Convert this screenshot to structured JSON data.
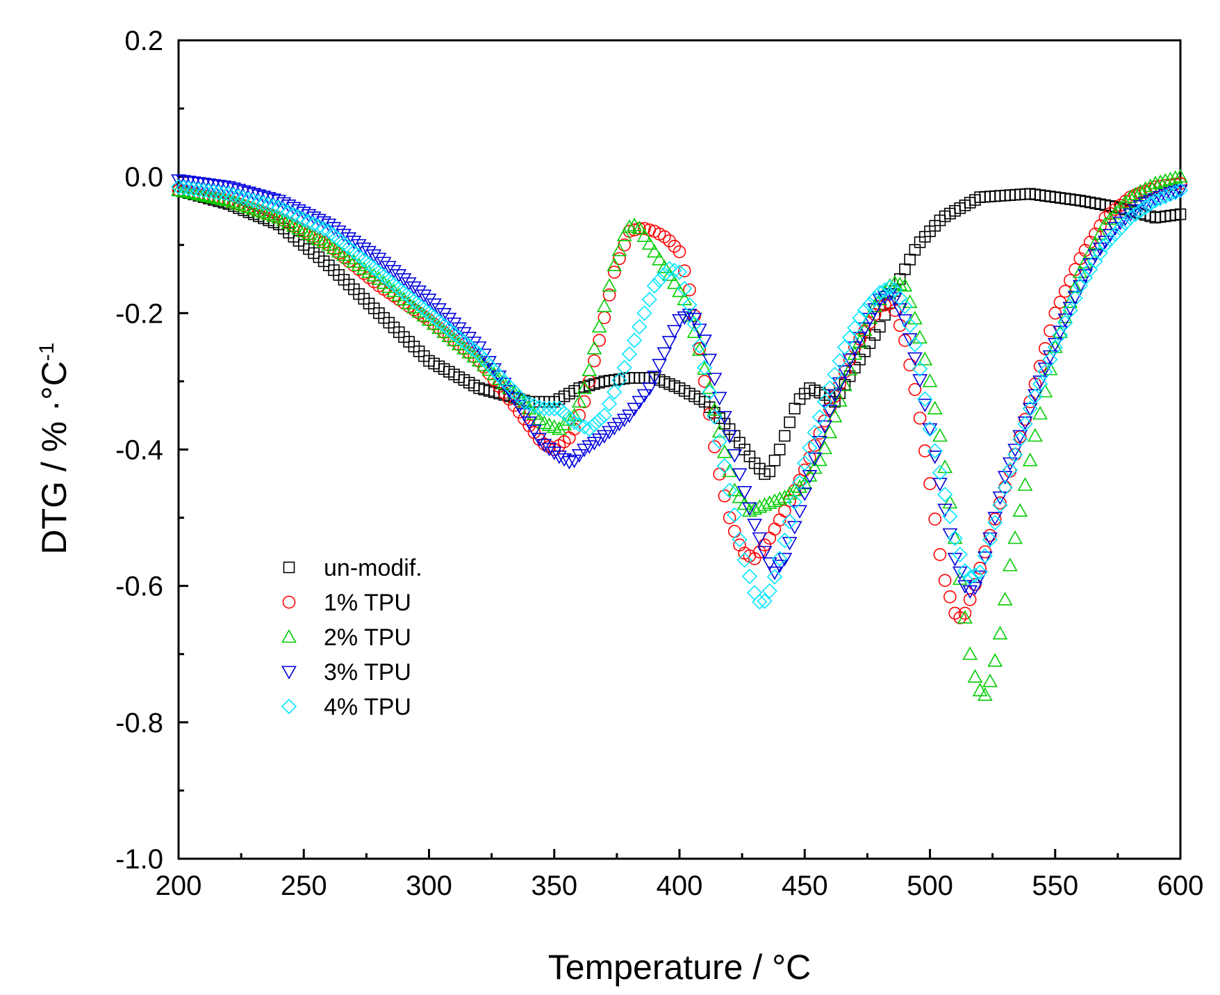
{
  "chart_data": {
    "type": "scatter",
    "title": "",
    "xlabel": "Temperature / °C",
    "ylabel_parts": {
      "main": "DTG / % ·°C",
      "superscript": "-1"
    },
    "xlim": [
      200,
      600
    ],
    "ylim": [
      -1.0,
      0.2
    ],
    "x_ticks": [
      200,
      250,
      300,
      350,
      400,
      450,
      500,
      550,
      600
    ],
    "x_tick_labels": [
      "200",
      "250",
      "300",
      "350",
      "400",
      "450",
      "500",
      "550",
      "600"
    ],
    "y_ticks": [
      0.2,
      0.0,
      -0.2,
      -0.4,
      -0.6,
      -0.8,
      -1.0
    ],
    "y_tick_labels": [
      "0.2",
      "0.0",
      "-0.2",
      "-0.4",
      "-0.6",
      "-0.8",
      "-1.0"
    ],
    "legend_position": "lower-left",
    "series": [
      {
        "name": "un-modif.",
        "marker": "square",
        "color": "#000000",
        "points": [
          [
            200,
            -0.02
          ],
          [
            220,
            -0.04
          ],
          [
            240,
            -0.07
          ],
          [
            260,
            -0.13
          ],
          [
            280,
            -0.2
          ],
          [
            300,
            -0.27
          ],
          [
            320,
            -0.31
          ],
          [
            340,
            -0.33
          ],
          [
            350,
            -0.33
          ],
          [
            360,
            -0.31
          ],
          [
            370,
            -0.3
          ],
          [
            380,
            -0.295
          ],
          [
            390,
            -0.295
          ],
          [
            400,
            -0.31
          ],
          [
            410,
            -0.33
          ],
          [
            420,
            -0.37
          ],
          [
            430,
            -0.42
          ],
          [
            435,
            -0.44
          ],
          [
            440,
            -0.4
          ],
          [
            447,
            -0.33
          ],
          [
            452,
            -0.31
          ],
          [
            458,
            -0.32
          ],
          [
            462,
            -0.33
          ],
          [
            470,
            -0.28
          ],
          [
            480,
            -0.22
          ],
          [
            488,
            -0.15
          ],
          [
            495,
            -0.1
          ],
          [
            505,
            -0.06
          ],
          [
            520,
            -0.03
          ],
          [
            540,
            -0.025
          ],
          [
            560,
            -0.035
          ],
          [
            575,
            -0.045
          ],
          [
            590,
            -0.06
          ],
          [
            600,
            -0.055
          ]
        ]
      },
      {
        "name": "1% TPU",
        "marker": "circle",
        "color": "#ff0000",
        "points": [
          [
            200,
            -0.02
          ],
          [
            220,
            -0.035
          ],
          [
            240,
            -0.06
          ],
          [
            260,
            -0.1
          ],
          [
            280,
            -0.16
          ],
          [
            300,
            -0.21
          ],
          [
            320,
            -0.27
          ],
          [
            335,
            -0.34
          ],
          [
            345,
            -0.39
          ],
          [
            350,
            -0.4
          ],
          [
            357,
            -0.38
          ],
          [
            362,
            -0.33
          ],
          [
            368,
            -0.24
          ],
          [
            374,
            -0.14
          ],
          [
            380,
            -0.08
          ],
          [
            385,
            -0.075
          ],
          [
            390,
            -0.08
          ],
          [
            395,
            -0.09
          ],
          [
            400,
            -0.11
          ],
          [
            405,
            -0.18
          ],
          [
            410,
            -0.3
          ],
          [
            415,
            -0.42
          ],
          [
            420,
            -0.5
          ],
          [
            425,
            -0.55
          ],
          [
            430,
            -0.56
          ],
          [
            436,
            -0.53
          ],
          [
            442,
            -0.49
          ],
          [
            450,
            -0.43
          ],
          [
            460,
            -0.34
          ],
          [
            470,
            -0.25
          ],
          [
            480,
            -0.19
          ],
          [
            485,
            -0.185
          ],
          [
            490,
            -0.24
          ],
          [
            495,
            -0.33
          ],
          [
            500,
            -0.45
          ],
          [
            505,
            -0.58
          ],
          [
            510,
            -0.64
          ],
          [
            513,
            -0.65
          ],
          [
            517,
            -0.61
          ],
          [
            522,
            -0.55
          ],
          [
            527,
            -0.49
          ],
          [
            533,
            -0.42
          ],
          [
            540,
            -0.33
          ],
          [
            550,
            -0.2
          ],
          [
            560,
            -0.12
          ],
          [
            570,
            -0.06
          ],
          [
            580,
            -0.03
          ],
          [
            590,
            -0.015
          ],
          [
            600,
            -0.01
          ]
        ]
      },
      {
        "name": "2% TPU",
        "marker": "triangle-up",
        "color": "#00cc00",
        "points": [
          [
            200,
            -0.02
          ],
          [
            220,
            -0.035
          ],
          [
            240,
            -0.06
          ],
          [
            260,
            -0.1
          ],
          [
            280,
            -0.15
          ],
          [
            300,
            -0.21
          ],
          [
            320,
            -0.27
          ],
          [
            335,
            -0.32
          ],
          [
            345,
            -0.36
          ],
          [
            352,
            -0.37
          ],
          [
            358,
            -0.35
          ],
          [
            363,
            -0.3
          ],
          [
            368,
            -0.22
          ],
          [
            374,
            -0.13
          ],
          [
            379,
            -0.075
          ],
          [
            383,
            -0.07
          ],
          [
            390,
            -0.11
          ],
          [
            397,
            -0.15
          ],
          [
            402,
            -0.18
          ],
          [
            407,
            -0.24
          ],
          [
            412,
            -0.31
          ],
          [
            417,
            -0.39
          ],
          [
            422,
            -0.46
          ],
          [
            428,
            -0.49
          ],
          [
            435,
            -0.48
          ],
          [
            442,
            -0.47
          ],
          [
            450,
            -0.45
          ],
          [
            457,
            -0.41
          ],
          [
            463,
            -0.34
          ],
          [
            470,
            -0.26
          ],
          [
            478,
            -0.19
          ],
          [
            485,
            -0.155
          ],
          [
            490,
            -0.16
          ],
          [
            495,
            -0.22
          ],
          [
            500,
            -0.3
          ],
          [
            505,
            -0.4
          ],
          [
            510,
            -0.53
          ],
          [
            513,
            -0.62
          ],
          [
            516,
            -0.7
          ],
          [
            519,
            -0.75
          ],
          [
            522,
            -0.76
          ],
          [
            525,
            -0.73
          ],
          [
            528,
            -0.67
          ],
          [
            532,
            -0.57
          ],
          [
            537,
            -0.47
          ],
          [
            542,
            -0.38
          ],
          [
            550,
            -0.25
          ],
          [
            560,
            -0.14
          ],
          [
            570,
            -0.07
          ],
          [
            580,
            -0.03
          ],
          [
            590,
            -0.01
          ],
          [
            600,
            0.0
          ]
        ]
      },
      {
        "name": "3% TPU",
        "marker": "triangle-down",
        "color": "#0000dd",
        "points": [
          [
            200,
            -0.005
          ],
          [
            220,
            -0.015
          ],
          [
            240,
            -0.035
          ],
          [
            260,
            -0.07
          ],
          [
            280,
            -0.12
          ],
          [
            300,
            -0.18
          ],
          [
            320,
            -0.25
          ],
          [
            335,
            -0.33
          ],
          [
            345,
            -0.39
          ],
          [
            352,
            -0.41
          ],
          [
            357,
            -0.42
          ],
          [
            362,
            -0.4
          ],
          [
            370,
            -0.38
          ],
          [
            380,
            -0.35
          ],
          [
            388,
            -0.31
          ],
          [
            395,
            -0.25
          ],
          [
            400,
            -0.21
          ],
          [
            405,
            -0.2
          ],
          [
            410,
            -0.24
          ],
          [
            415,
            -0.31
          ],
          [
            420,
            -0.38
          ],
          [
            425,
            -0.45
          ],
          [
            430,
            -0.51
          ],
          [
            435,
            -0.56
          ],
          [
            438,
            -0.58
          ],
          [
            442,
            -0.56
          ],
          [
            448,
            -0.49
          ],
          [
            455,
            -0.4
          ],
          [
            462,
            -0.32
          ],
          [
            470,
            -0.25
          ],
          [
            480,
            -0.18
          ],
          [
            485,
            -0.17
          ],
          [
            490,
            -0.21
          ],
          [
            495,
            -0.28
          ],
          [
            500,
            -0.37
          ],
          [
            505,
            -0.47
          ],
          [
            510,
            -0.56
          ],
          [
            515,
            -0.61
          ],
          [
            519,
            -0.6
          ],
          [
            524,
            -0.53
          ],
          [
            530,
            -0.44
          ],
          [
            537,
            -0.37
          ],
          [
            545,
            -0.29
          ],
          [
            555,
            -0.2
          ],
          [
            565,
            -0.12
          ],
          [
            575,
            -0.07
          ],
          [
            585,
            -0.04
          ],
          [
            595,
            -0.025
          ],
          [
            600,
            -0.02
          ]
        ]
      },
      {
        "name": "4% TPU",
        "marker": "diamond",
        "color": "#00e5ff",
        "points": [
          [
            200,
            -0.015
          ],
          [
            220,
            -0.025
          ],
          [
            240,
            -0.045
          ],
          [
            260,
            -0.08
          ],
          [
            280,
            -0.14
          ],
          [
            300,
            -0.2
          ],
          [
            320,
            -0.26
          ],
          [
            330,
            -0.3
          ],
          [
            338,
            -0.33
          ],
          [
            345,
            -0.34
          ],
          [
            352,
            -0.34
          ],
          [
            358,
            -0.36
          ],
          [
            364,
            -0.37
          ],
          [
            370,
            -0.35
          ],
          [
            377,
            -0.29
          ],
          [
            384,
            -0.22
          ],
          [
            390,
            -0.16
          ],
          [
            396,
            -0.135
          ],
          [
            400,
            -0.14
          ],
          [
            405,
            -0.2
          ],
          [
            410,
            -0.28
          ],
          [
            415,
            -0.37
          ],
          [
            420,
            -0.46
          ],
          [
            425,
            -0.55
          ],
          [
            430,
            -0.61
          ],
          [
            433,
            -0.63
          ],
          [
            437,
            -0.6
          ],
          [
            443,
            -0.52
          ],
          [
            450,
            -0.42
          ],
          [
            458,
            -0.33
          ],
          [
            466,
            -0.25
          ],
          [
            473,
            -0.2
          ],
          [
            480,
            -0.17
          ],
          [
            485,
            -0.16
          ],
          [
            490,
            -0.19
          ],
          [
            495,
            -0.26
          ],
          [
            500,
            -0.37
          ],
          [
            505,
            -0.45
          ],
          [
            510,
            -0.53
          ],
          [
            515,
            -0.59
          ],
          [
            520,
            -0.58
          ],
          [
            525,
            -0.52
          ],
          [
            532,
            -0.43
          ],
          [
            540,
            -0.34
          ],
          [
            550,
            -0.25
          ],
          [
            560,
            -0.16
          ],
          [
            570,
            -0.1
          ],
          [
            580,
            -0.06
          ],
          [
            590,
            -0.035
          ],
          [
            600,
            -0.02
          ]
        ]
      }
    ]
  }
}
